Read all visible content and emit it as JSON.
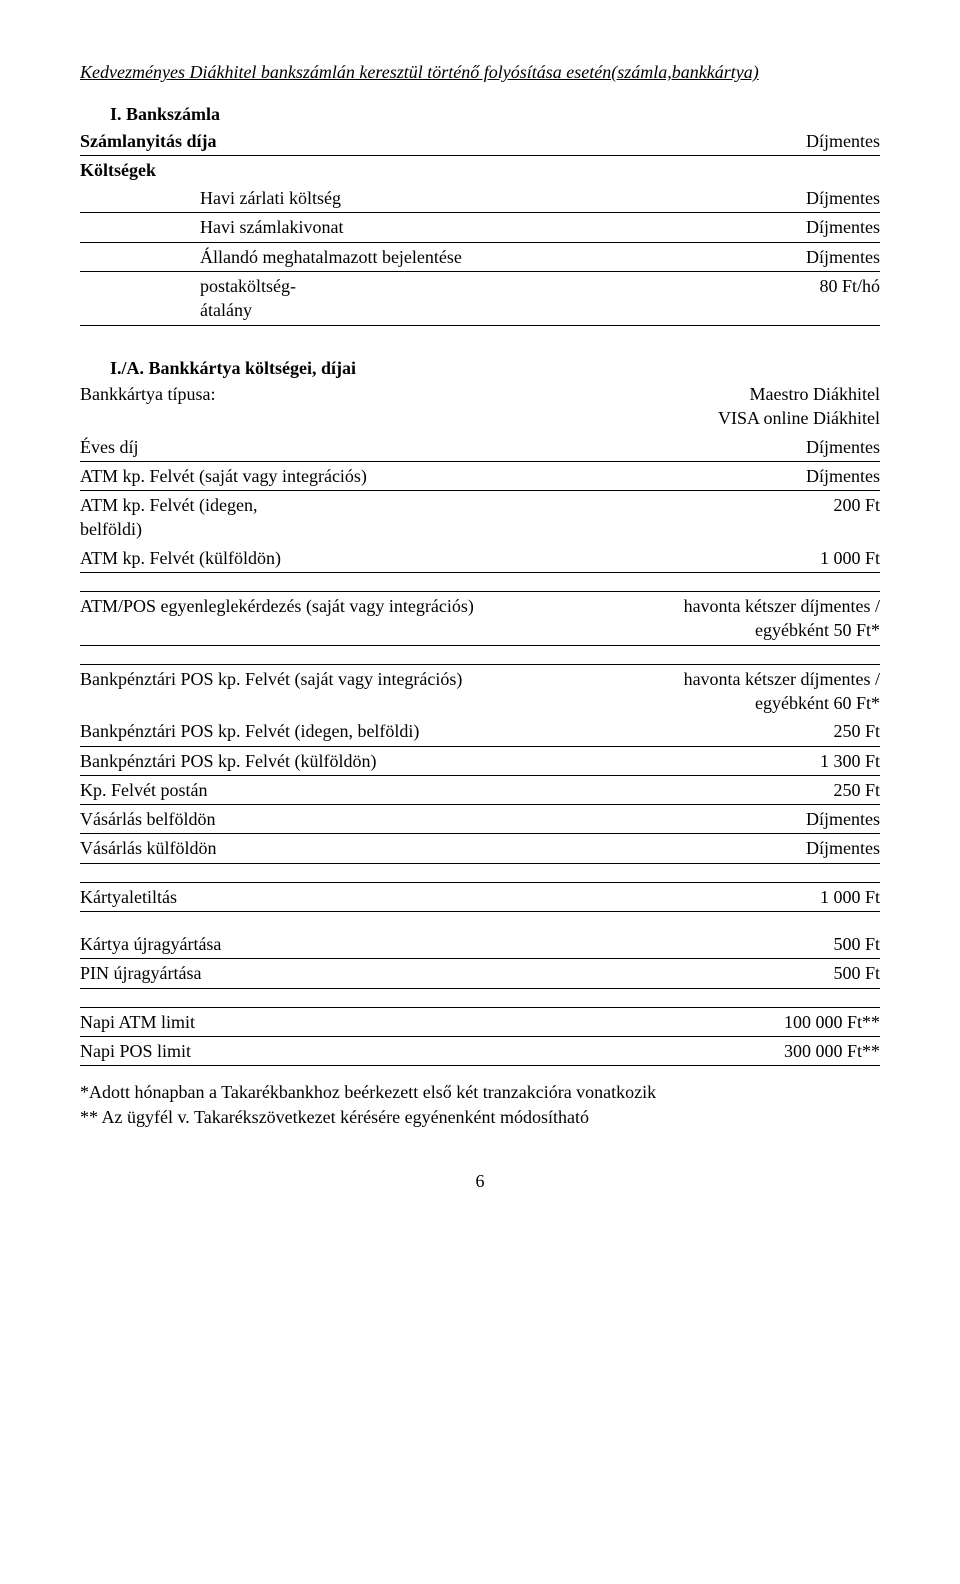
{
  "title": "Kedvezményes Diákhitel bankszámlán keresztül történő folyósítása esetén(számla,bankkártya)",
  "section1": {
    "heading": "I. Bankszámla",
    "rows": [
      {
        "left": "Számlanyitás díja",
        "right": "Díjmentes",
        "bold": true
      },
      {
        "left": "Költségek",
        "right": "",
        "bold": true
      }
    ],
    "subrows": [
      {
        "left": "Havi zárlati költség",
        "right": "Díjmentes"
      },
      {
        "left": "Havi számlakivonat",
        "right": "Díjmentes"
      },
      {
        "left": "Állandó meghatalmazott bejelentése",
        "right": "Díjmentes"
      },
      {
        "left_l1": "postaköltség-",
        "left_l2": "átalány",
        "right": "80 Ft/hó"
      }
    ]
  },
  "section2": {
    "heading": "I./A. Bankkártya költségei, díjai",
    "rows": [
      {
        "left": "Bankkártya típusa:",
        "r1": "Maestro Diákhitel",
        "r2": "VISA online Diákhitel"
      },
      {
        "left": "Éves díj",
        "right": "Díjmentes"
      },
      {
        "left": "ATM kp. Felvét (saját vagy integrációs)",
        "right": "Díjmentes"
      },
      {
        "l1": "ATM kp. Felvét (idegen,",
        "l2": "belföldi)",
        "right": "200 Ft"
      },
      {
        "left": "ATM kp. Felvét (külföldön)",
        "right": "1 000 Ft"
      }
    ],
    "rows2": [
      {
        "left": "ATM/POS egyenleglekérdezés (saját vagy integrációs)",
        "r1": "havonta kétszer díjmentes /",
        "r2": "egyébként 50 Ft*"
      }
    ],
    "rows3": [
      {
        "left": "Bankpénztári POS kp. Felvét (saját vagy integrációs)",
        "r1": "havonta kétszer díjmentes /",
        "r2": "egyébként 60 Ft*"
      },
      {
        "left": "Bankpénztári POS kp. Felvét (idegen, belföldi)",
        "right": "250 Ft"
      },
      {
        "left": "Bankpénztári POS kp. Felvét (külföldön)",
        "right": "1 300 Ft"
      },
      {
        "left": "Kp. Felvét postán",
        "right": "250 Ft"
      },
      {
        "left": "Vásárlás belföldön",
        "right": "Díjmentes"
      },
      {
        "left": "Vásárlás külföldön",
        "right": "Díjmentes"
      }
    ],
    "rows4": [
      {
        "left": "Kártyaletiltás",
        "right": "1 000 Ft"
      }
    ],
    "rows5": [
      {
        "left": "Kártya újragyártása",
        "right": "500 Ft"
      },
      {
        "left": "PIN újragyártása",
        "right": "500 Ft"
      }
    ],
    "rows6": [
      {
        "left": "Napi ATM limit",
        "right": "100 000 Ft**"
      },
      {
        "left": "Napi POS limit",
        "right": "300 000 Ft**"
      }
    ]
  },
  "footnotes": {
    "l1": "*Adott hónapban a Takarékbankhoz beérkezett első két tranzakcióra vonatkozik",
    "l2": "** Az ügyfél v. Takarékszövetkezet kérésére egyénenként módosítható"
  },
  "page_number": "6"
}
